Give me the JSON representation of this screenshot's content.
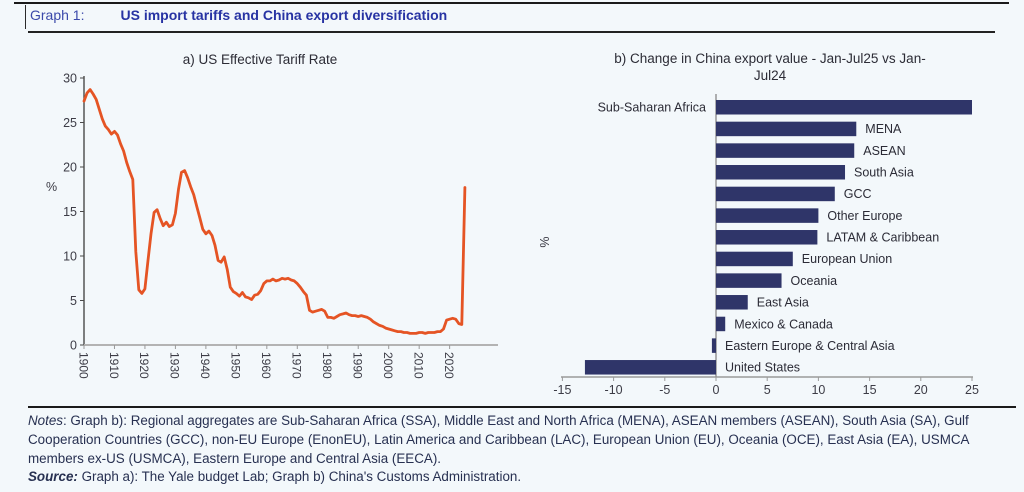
{
  "header": {
    "label": "Graph 1:",
    "title": "US import tariffs and China export diversification"
  },
  "colors": {
    "background": "#f3f8fb",
    "header_label_blue": "#3b49aa",
    "header_title_blue": "#2733a3",
    "line_orange": "#e55424",
    "bar_navy": "#2f3569",
    "axis_dark": "#4a4a4a",
    "axis_gray": "#b3b3b3",
    "tick_text": "#3c3c46",
    "rule_dark": "#1a1a1a"
  },
  "chart_data": [
    {
      "type": "line",
      "title": "a) US Effective Tariff Rate",
      "ylabel": "%",
      "ylim": [
        0,
        30
      ],
      "yticks": [
        0,
        5,
        10,
        15,
        20,
        25,
        30
      ],
      "xticks": [
        1900,
        1910,
        1920,
        1930,
        1940,
        1950,
        1960,
        1970,
        1980,
        1990,
        2000,
        2010,
        2020
      ],
      "grid": false,
      "series": [
        {
          "name": "US effective tariff rate (%)",
          "x_start": 1900,
          "x_step": 1,
          "values": [
            27.4,
            28.3,
            28.7,
            28.2,
            27.6,
            26.5,
            25.4,
            24.6,
            24.2,
            23.7,
            24.0,
            23.6,
            22.6,
            21.8,
            20.5,
            19.5,
            18.6,
            10.5,
            6.2,
            5.8,
            6.3,
            9.5,
            12.5,
            14.9,
            15.2,
            14.2,
            13.4,
            13.8,
            13.3,
            13.5,
            14.8,
            17.5,
            19.4,
            19.6,
            18.8,
            17.8,
            16.9,
            15.6,
            14.3,
            13.0,
            12.5,
            12.8,
            12.3,
            11.2,
            9.5,
            9.3,
            9.9,
            8.5,
            6.5,
            6.0,
            5.8,
            5.5,
            5.9,
            5.4,
            5.3,
            5.1,
            5.6,
            5.7,
            6.1,
            6.9,
            7.2,
            7.2,
            7.4,
            7.2,
            7.3,
            7.5,
            7.4,
            7.5,
            7.3,
            7.2,
            6.9,
            6.5,
            6.0,
            5.6,
            3.9,
            3.7,
            3.8,
            3.9,
            4.0,
            3.8,
            3.1,
            3.1,
            3.0,
            3.2,
            3.4,
            3.5,
            3.6,
            3.4,
            3.3,
            3.3,
            3.2,
            3.3,
            3.2,
            3.1,
            2.9,
            2.6,
            2.4,
            2.2,
            2.1,
            1.9,
            1.8,
            1.7,
            1.6,
            1.5,
            1.5,
            1.4,
            1.4,
            1.3,
            1.3,
            1.3,
            1.4,
            1.4,
            1.3,
            1.4,
            1.4,
            1.4,
            1.5,
            1.5,
            1.8,
            2.8,
            2.9,
            3.0,
            2.9,
            2.4,
            2.3,
            17.7
          ]
        }
      ]
    },
    {
      "type": "bar",
      "orientation": "horizontal",
      "title_line1": "b) Change in China export value - Jan-Jul25 vs Jan-",
      "title_line2": "Jul24",
      "ylabel": "%",
      "xlim": [
        -15,
        25
      ],
      "xticks": [
        -15,
        -10,
        -5,
        0,
        5,
        10,
        15,
        20,
        25
      ],
      "categories": [
        "Sub-Saharan Africa",
        "MENA",
        "ASEAN",
        "South Asia",
        "GCC",
        "Other Europe",
        "LATAM & Caribbean",
        "European Union",
        "Oceania",
        "East Asia",
        "Mexico & Canada",
        "Eastern Europe & Central Asia",
        "United States"
      ],
      "values": [
        25.0,
        13.7,
        13.5,
        12.6,
        11.6,
        10.0,
        9.9,
        7.5,
        6.4,
        3.1,
        0.9,
        -0.4,
        -12.8
      ]
    }
  ],
  "notes": {
    "notes_label": "Notes",
    "notes_body": ": Graph b): Regional aggregates are Sub-Saharan Africa (SSA), Middle East and North Africa (MENA), ASEAN members (ASEAN), South Asia (SA), Gulf Cooperation Countries (GCC), non-EU Europe (EnonEU), Latin America and Caribbean (LAC), European Union (EU), Oceania (OCE), East Asia (EA), USMCA members ex-US (USMCA), Eastern Europe and Central Asia (EECA).",
    "source_label": "Source:",
    "source_body": " Graph a): The Yale budget Lab; Graph b) China's Customs Administration."
  }
}
